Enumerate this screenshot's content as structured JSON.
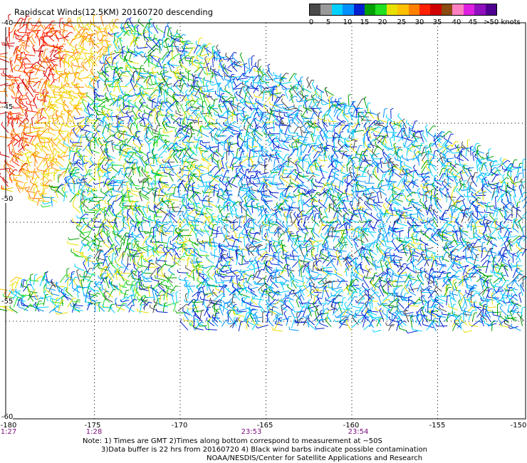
{
  "title": "Rapidscat Winds(12.5KM) 20160720 descending",
  "colorbar": {
    "colors": [
      "#4a4a4a",
      "#9a9a9a",
      "#00d0ff",
      "#0090ff",
      "#0020d0",
      "#00a000",
      "#20e020",
      "#e8e000",
      "#ffc000",
      "#ff8000",
      "#ff2000",
      "#d00000",
      "#8a4a10",
      "#ff80c0",
      "#e020e0",
      "#9010c0",
      "#500090"
    ],
    "labels": [
      "0",
      "5",
      "10",
      "15",
      "20",
      "25",
      "30",
      "35",
      "40",
      "45",
      ">50 knots"
    ]
  },
  "x_axis": {
    "labels": [
      "-180",
      "-175",
      "-170",
      "-165",
      "-160",
      "-155",
      "-150"
    ]
  },
  "y_axis": {
    "labels": [
      "-40",
      "-45",
      "-50",
      "-55",
      "-60"
    ]
  },
  "time_labels": [
    {
      "text": "1:27",
      "lon": -180
    },
    {
      "text": "1:28",
      "lon": -175
    },
    {
      "text": "23:53",
      "lon": -165
    },
    {
      "text": "23:54",
      "lon": -160
    }
  ],
  "notes": {
    "line1": "Note: 1) Times are GMT 2)Times along bottom correspond to measurement at ~50S",
    "line2": "3)Data buffer is 22 hrs from 20160720 4) Black wind barbs indicate possible contamination",
    "line3": "NOAA/NESDIS/Center for Satellite Applications and Research"
  }
}
